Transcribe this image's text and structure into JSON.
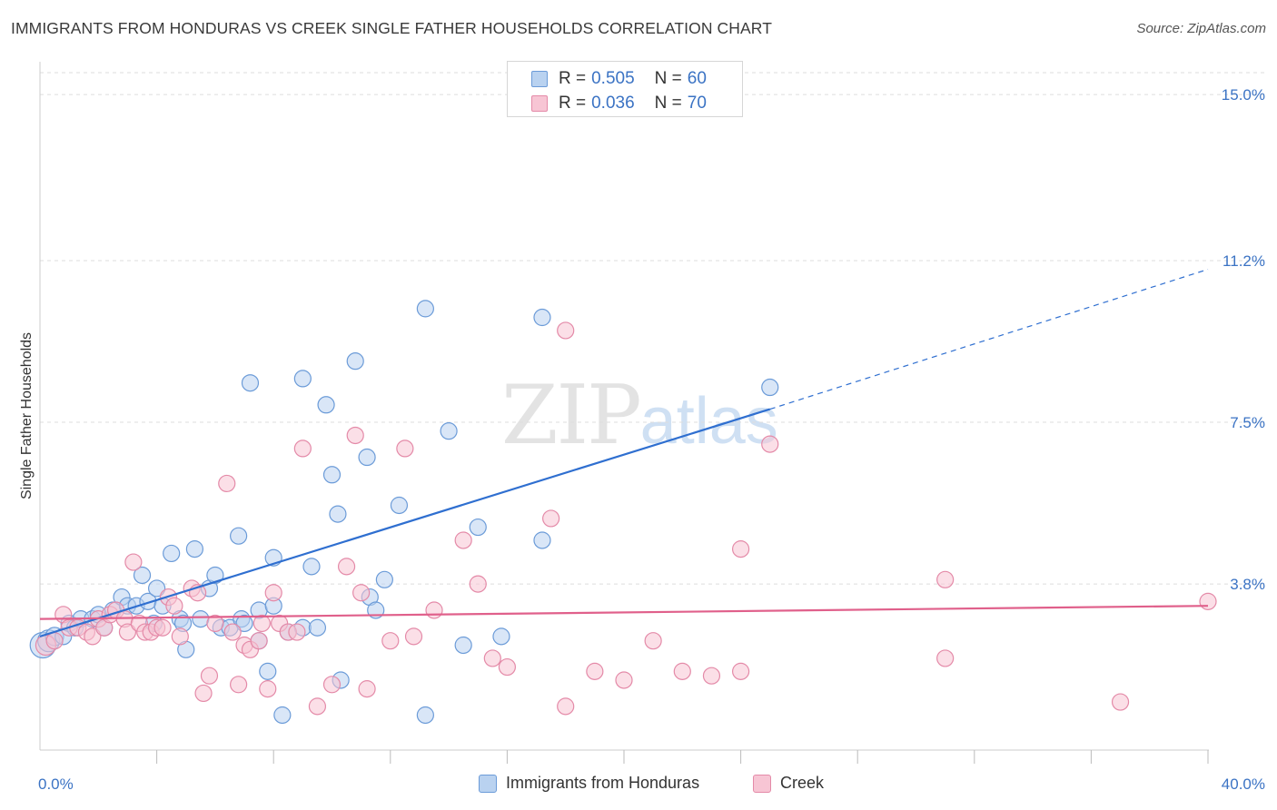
{
  "header": {
    "title": "IMMIGRANTS FROM HONDURAS VS CREEK SINGLE FATHER HOUSEHOLDS CORRELATION CHART",
    "source": "Source: ZipAtlas.com"
  },
  "watermark": {
    "zip": "ZIP",
    "atlas": "atlas"
  },
  "colors": {
    "blue_fill": "#b9d2f0",
    "blue_stroke": "#6b9bd8",
    "blue_line": "#2f6fd0",
    "pink_fill": "#f7c5d4",
    "pink_stroke": "#e48aa8",
    "pink_line": "#e0608b",
    "axis_label": "#3b73c4",
    "grid": "#dddddd"
  },
  "stats_legend": {
    "rows": [
      {
        "r_label": "R =",
        "r_value": "0.505",
        "n_label": "N =",
        "n_value": "60",
        "series": "blue"
      },
      {
        "r_label": "R =",
        "r_value": "0.036",
        "n_label": "N =",
        "n_value": "70",
        "series": "pink"
      }
    ]
  },
  "bottom_legend": {
    "items": [
      {
        "label": "Immigrants from Honduras",
        "series": "blue"
      },
      {
        "label": "Creek",
        "series": "pink"
      }
    ]
  },
  "chart_data": {
    "type": "scatter",
    "title": "IMMIGRANTS FROM HONDURAS VS CREEK SINGLE FATHER HOUSEHOLDS CORRELATION CHART",
    "xlabel": "",
    "ylabel": "Single Father Households",
    "xlim": [
      0,
      40
    ],
    "ylim": [
      0,
      15.5
    ],
    "x_tick_labels": [
      {
        "value": 0,
        "label": "0.0%"
      },
      {
        "value": 40,
        "label": "40.0%"
      }
    ],
    "x_minor_ticks": [
      4,
      8,
      12,
      16,
      20,
      24,
      28,
      32,
      36,
      40
    ],
    "y_tick_labels": [
      {
        "value": 3.8,
        "label": "3.8%"
      },
      {
        "value": 7.5,
        "label": "7.5%"
      },
      {
        "value": 11.2,
        "label": "11.2%"
      },
      {
        "value": 15.0,
        "label": "15.0%"
      }
    ],
    "grid": "horizontal dashed",
    "series": [
      {
        "name": "Immigrants from Honduras",
        "color": "blue",
        "R": 0.505,
        "N": 60,
        "trend": {
          "x0": 0,
          "y0": 2.6,
          "x1": 25.0,
          "y1": 7.8,
          "x_dash_end": 40,
          "y_dash_end": 11.0
        },
        "points": [
          [
            0.1,
            2.4,
            14
          ],
          [
            0.3,
            2.5,
            12
          ],
          [
            0.5,
            2.6,
            10
          ],
          [
            0.8,
            2.6,
            9
          ],
          [
            1.0,
            2.9,
            9
          ],
          [
            1.2,
            2.8,
            9
          ],
          [
            1.4,
            3.0,
            9
          ],
          [
            1.8,
            3.0,
            9
          ],
          [
            2.0,
            3.1,
            9
          ],
          [
            2.2,
            2.8,
            9
          ],
          [
            2.5,
            3.2,
            9
          ],
          [
            2.8,
            3.5,
            9
          ],
          [
            3.0,
            3.3,
            9
          ],
          [
            3.3,
            3.3,
            9
          ],
          [
            3.5,
            4.0,
            9
          ],
          [
            3.7,
            3.4,
            9
          ],
          [
            3.9,
            2.9,
            9
          ],
          [
            4.0,
            3.7,
            9
          ],
          [
            4.2,
            3.3,
            9
          ],
          [
            4.5,
            4.5,
            9
          ],
          [
            4.8,
            3.0,
            9
          ],
          [
            4.9,
            2.9,
            9
          ],
          [
            5.0,
            2.3,
            9
          ],
          [
            5.3,
            4.6,
            9
          ],
          [
            5.5,
            3.0,
            9
          ],
          [
            5.8,
            3.7,
            9
          ],
          [
            6.0,
            4.0,
            9
          ],
          [
            6.2,
            2.8,
            9
          ],
          [
            6.5,
            2.8,
            9
          ],
          [
            6.8,
            4.9,
            9
          ],
          [
            6.9,
            3.0,
            9
          ],
          [
            7.0,
            2.9,
            9
          ],
          [
            7.2,
            8.4,
            9
          ],
          [
            7.5,
            3.2,
            9
          ],
          [
            7.5,
            2.5,
            9
          ],
          [
            7.8,
            1.8,
            9
          ],
          [
            8.0,
            3.3,
            9
          ],
          [
            8.3,
            0.8,
            9
          ],
          [
            8.5,
            2.7,
            9
          ],
          [
            8.0,
            4.4,
            9
          ],
          [
            9.0,
            8.5,
            9
          ],
          [
            9.0,
            2.8,
            9
          ],
          [
            9.3,
            4.2,
            9
          ],
          [
            9.5,
            2.8,
            9
          ],
          [
            10.0,
            6.3,
            9
          ],
          [
            10.3,
            1.6,
            9
          ],
          [
            10.2,
            5.4,
            9
          ],
          [
            9.8,
            7.9,
            9
          ],
          [
            10.8,
            8.9,
            9
          ],
          [
            11.2,
            6.7,
            9
          ],
          [
            11.3,
            3.5,
            9
          ],
          [
            11.5,
            3.2,
            9
          ],
          [
            11.8,
            3.9,
            9
          ],
          [
            12.3,
            5.6,
            9
          ],
          [
            13.2,
            0.8,
            9
          ],
          [
            13.2,
            10.1,
            9
          ],
          [
            14.0,
            7.3,
            9
          ],
          [
            14.5,
            2.4,
            9
          ],
          [
            15.0,
            5.1,
            9
          ],
          [
            15.8,
            2.6,
            9
          ],
          [
            17.2,
            4.8,
            9
          ],
          [
            17.2,
            9.9,
            9
          ],
          [
            25.0,
            8.3,
            9
          ]
        ]
      },
      {
        "name": "Creek",
        "color": "pink",
        "R": 0.036,
        "N": 70,
        "trend": {
          "x0": 0,
          "y0": 3.0,
          "x1": 40,
          "y1": 3.3
        },
        "points": [
          [
            0.2,
            2.4,
            11
          ],
          [
            0.5,
            2.5,
            9
          ],
          [
            0.8,
            3.1,
            9
          ],
          [
            1.0,
            2.8,
            9
          ],
          [
            1.3,
            2.8,
            9
          ],
          [
            1.6,
            2.7,
            9
          ],
          [
            1.8,
            2.6,
            9
          ],
          [
            2.0,
            3.0,
            9
          ],
          [
            2.2,
            2.8,
            9
          ],
          [
            2.4,
            3.1,
            9
          ],
          [
            2.6,
            3.2,
            9
          ],
          [
            2.9,
            3.0,
            9
          ],
          [
            3.0,
            2.7,
            9
          ],
          [
            3.2,
            4.3,
            9
          ],
          [
            3.4,
            2.9,
            9
          ],
          [
            3.6,
            2.7,
            9
          ],
          [
            3.8,
            2.7,
            9
          ],
          [
            4.0,
            2.8,
            9
          ],
          [
            4.2,
            2.8,
            9
          ],
          [
            4.4,
            3.5,
            9
          ],
          [
            4.6,
            3.3,
            9
          ],
          [
            4.8,
            2.6,
            9
          ],
          [
            5.2,
            3.7,
            9
          ],
          [
            5.4,
            3.6,
            9
          ],
          [
            5.6,
            1.3,
            9
          ],
          [
            5.8,
            1.7,
            9
          ],
          [
            6.0,
            2.9,
            9
          ],
          [
            6.4,
            6.1,
            9
          ],
          [
            6.6,
            2.7,
            9
          ],
          [
            6.8,
            1.5,
            9
          ],
          [
            7.0,
            2.4,
            9
          ],
          [
            7.2,
            2.3,
            9
          ],
          [
            7.5,
            2.5,
            9
          ],
          [
            7.6,
            2.9,
            9
          ],
          [
            7.8,
            1.4,
            9
          ],
          [
            8.0,
            3.6,
            9
          ],
          [
            8.2,
            2.9,
            9
          ],
          [
            8.5,
            2.7,
            9
          ],
          [
            8.8,
            2.7,
            9
          ],
          [
            9.0,
            6.9,
            9
          ],
          [
            9.5,
            1.0,
            9
          ],
          [
            10.0,
            1.5,
            9
          ],
          [
            10.5,
            4.2,
            9
          ],
          [
            10.8,
            7.2,
            9
          ],
          [
            11.0,
            3.6,
            9
          ],
          [
            11.2,
            1.4,
            9
          ],
          [
            12.0,
            2.5,
            9
          ],
          [
            12.5,
            6.9,
            9
          ],
          [
            12.8,
            2.6,
            9
          ],
          [
            13.5,
            3.2,
            9
          ],
          [
            14.5,
            4.8,
            9
          ],
          [
            15.0,
            3.8,
            9
          ],
          [
            15.5,
            2.1,
            9
          ],
          [
            16.0,
            1.9,
            9
          ],
          [
            17.5,
            5.3,
            9
          ],
          [
            18.0,
            1.0,
            9
          ],
          [
            18.0,
            9.6,
            9
          ],
          [
            19.0,
            1.8,
            9
          ],
          [
            20.0,
            1.6,
            9
          ],
          [
            21.0,
            2.5,
            9
          ],
          [
            22.0,
            1.8,
            9
          ],
          [
            23.0,
            1.7,
            9
          ],
          [
            24.0,
            1.8,
            9
          ],
          [
            24.0,
            4.6,
            9
          ],
          [
            25.0,
            7.0,
            9
          ],
          [
            31.0,
            3.9,
            9
          ],
          [
            31.0,
            2.1,
            9
          ],
          [
            37.0,
            1.1,
            9
          ],
          [
            40.0,
            3.4,
            9
          ]
        ]
      }
    ]
  }
}
